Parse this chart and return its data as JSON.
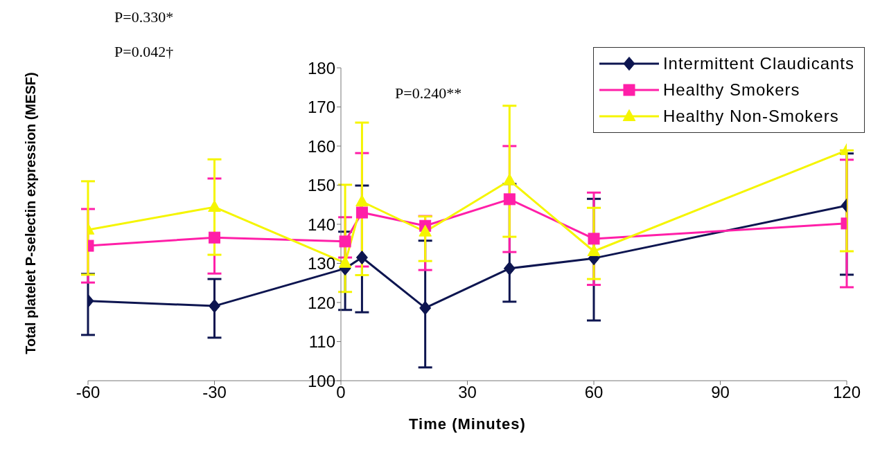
{
  "chart_data": {
    "type": "line",
    "xlabel": "Time (Minutes)",
    "ylabel": "Total platelet P-selectin expression (MESF)",
    "annotations": [
      "P=0.330*",
      "P=0.042†",
      "P=0.240**"
    ],
    "x": [
      -60,
      -30,
      1,
      5,
      20,
      40,
      60,
      120
    ],
    "series": [
      {
        "name": "Intermittent Claudicants",
        "color": "#0d1550",
        "marker": "diamond",
        "values": [
          120.4,
          119.1,
          128.7,
          131.5,
          118.6,
          128.7,
          131.3,
          144.8
        ],
        "errors": [
          [
            111.7,
            127.3
          ],
          [
            111.0,
            126.0
          ],
          [
            118.1,
            138.1
          ],
          [
            117.5,
            149.9
          ],
          [
            103.4,
            135.8
          ],
          [
            120.2,
            150.3
          ],
          [
            115.4,
            146.5
          ],
          [
            127.1,
            158.1
          ]
        ]
      },
      {
        "name": "Healthy Smokers",
        "color": "#ff1fa8",
        "marker": "square",
        "values": [
          134.5,
          136.6,
          135.6,
          143.0,
          139.6,
          146.4,
          136.3,
          140.2
        ],
        "errors": [
          [
            125.1,
            143.9
          ],
          [
            127.4,
            151.7
          ],
          [
            131.5,
            141.8
          ],
          [
            129.2,
            158.2
          ],
          [
            128.3,
            142.1
          ],
          [
            132.9,
            160.0
          ],
          [
            124.5,
            148.1
          ],
          [
            123.9,
            156.5
          ]
        ]
      },
      {
        "name": "Healthy Non-Smokers",
        "color": "#f5f500",
        "marker": "triangle",
        "values": [
          138.6,
          144.4,
          130.1,
          145.8,
          138.1,
          151.2,
          133.1,
          158.9
        ],
        "errors": [
          [
            127.1,
            151.0
          ],
          [
            132.2,
            156.6
          ],
          [
            122.7,
            150.1
          ],
          [
            127.0,
            166.0
          ],
          [
            130.6,
            142.0
          ],
          [
            136.8,
            170.3
          ],
          [
            126.0,
            144.2
          ],
          [
            133.1,
            158.9
          ]
        ]
      }
    ],
    "xlim": [
      -60,
      120
    ],
    "xticks": [
      -60,
      -30,
      0,
      30,
      60,
      90,
      120
    ],
    "ylim": [
      100,
      180
    ],
    "yticks": [
      100,
      110,
      120,
      130,
      140,
      150,
      160,
      170,
      180
    ],
    "grid": false,
    "legend": "top right"
  }
}
